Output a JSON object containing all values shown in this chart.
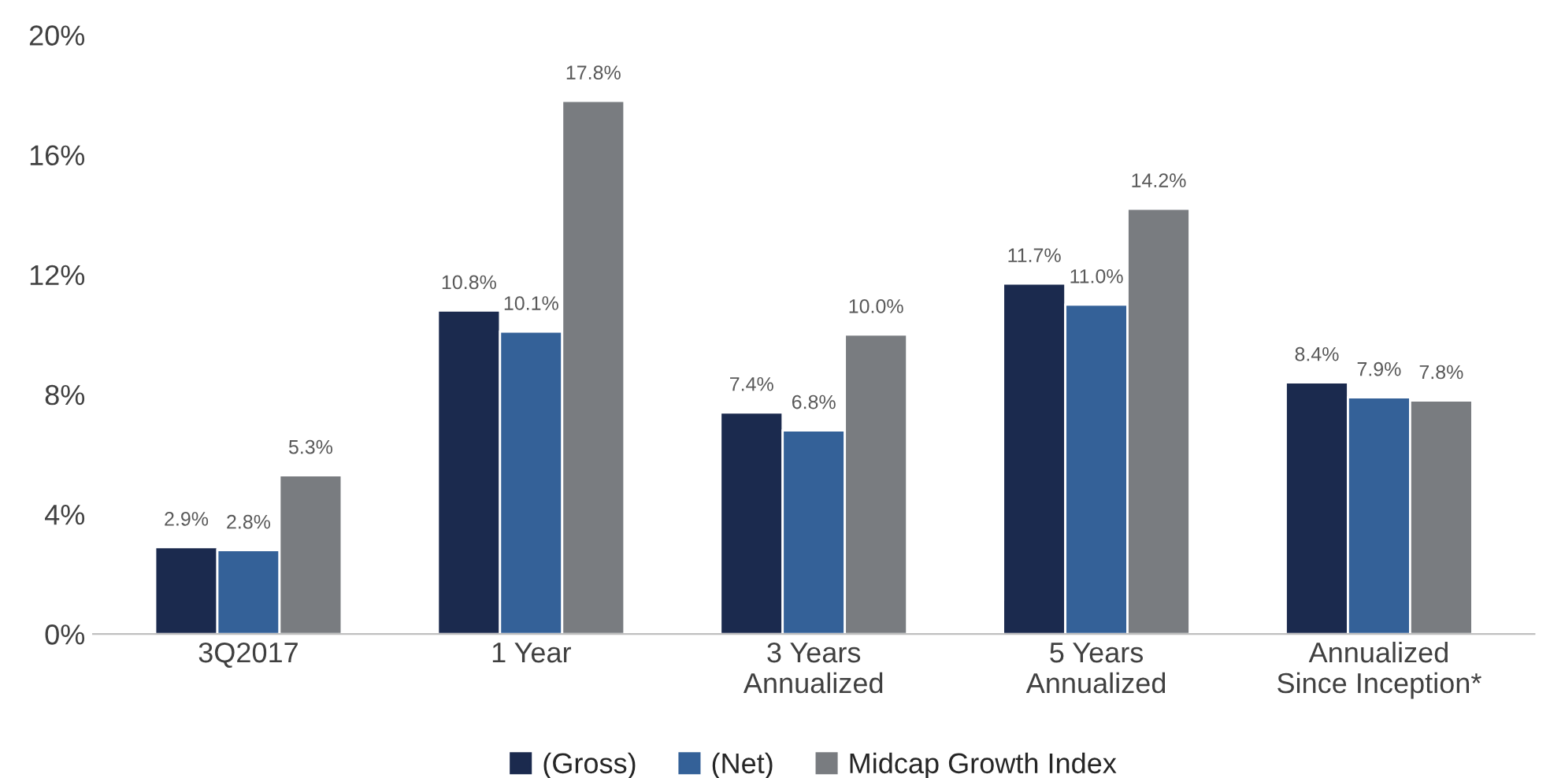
{
  "chart_data": {
    "type": "bar",
    "categories": [
      "3Q2017",
      "1 Year",
      "3 Years\nAnnualized",
      "5 Years\nAnnualized",
      "Annualized\nSince Inception*"
    ],
    "series": [
      {
        "name": "(Gross)",
        "color": "#1b2a4e",
        "values": [
          2.9,
          10.8,
          7.4,
          11.7,
          8.4
        ],
        "value_labels": [
          "2.9%",
          "10.8%",
          "7.4%",
          "11.7%",
          "8.4%"
        ]
      },
      {
        "name": "(Net)",
        "color": "#346198",
        "values": [
          2.8,
          10.1,
          6.8,
          11.0,
          7.9
        ],
        "value_labels": [
          "2.8%",
          "10.1%",
          "6.8%",
          "11.0%",
          "7.9%"
        ]
      },
      {
        "name": "Midcap Growth Index",
        "color": "#797c80",
        "values": [
          5.3,
          17.8,
          10.0,
          14.2,
          7.8
        ],
        "value_labels": [
          "5.3%",
          "17.8%",
          "10.0%",
          "14.2%",
          "7.8%"
        ]
      }
    ],
    "ylim": [
      0,
      20
    ],
    "yticks": [
      {
        "value": 0,
        "label": "0%"
      },
      {
        "value": 4,
        "label": "4%"
      },
      {
        "value": 8,
        "label": "8%"
      },
      {
        "value": 12,
        "label": "12%"
      },
      {
        "value": 16,
        "label": "16%"
      },
      {
        "value": 20,
        "label": "20%"
      }
    ],
    "grid": false,
    "legend": "bottom"
  }
}
